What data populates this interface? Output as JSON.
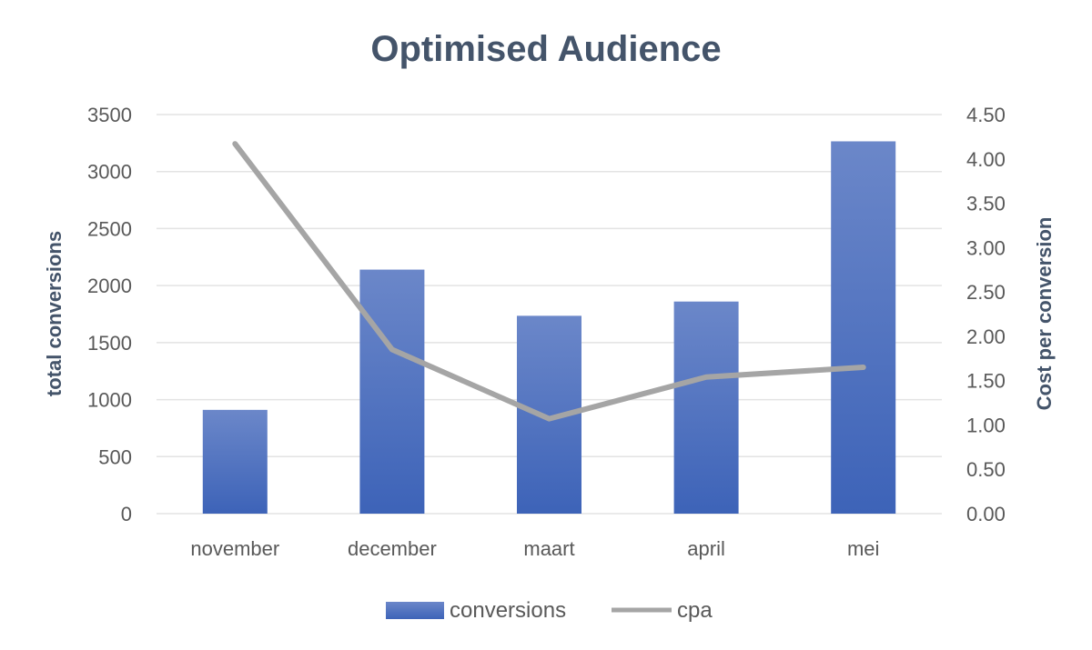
{
  "chart_data": {
    "type": "bar",
    "title": "Optimised Audience",
    "categories": [
      "november",
      "december",
      "maart",
      "april",
      "mei"
    ],
    "series": [
      {
        "name": "conversions",
        "type": "bar",
        "axis": "left",
        "values": [
          910,
          2140,
          1735,
          1860,
          3265
        ]
      },
      {
        "name": "cpa",
        "type": "line",
        "axis": "right",
        "values": [
          4.17,
          1.85,
          1.07,
          1.54,
          1.65
        ]
      }
    ],
    "ylabel": "total conversions",
    "ylim": [
      0,
      3500
    ],
    "yticks": [
      "0",
      "500",
      "1000",
      "1500",
      "2000",
      "2500",
      "3000",
      "3500"
    ],
    "y2label": "Cost per conversion",
    "y2lim": [
      0,
      4.5
    ],
    "y2ticks": [
      "0.00",
      "0.50",
      "1.00",
      "1.50",
      "2.00",
      "2.50",
      "3.00",
      "3.50",
      "4.00",
      "4.50"
    ],
    "grid": true,
    "legend_position": "bottom",
    "colors": {
      "bar_top": "#6b87c9",
      "bar_bottom": "#3d63b8",
      "line": "#a5a5a5",
      "grid": "#e3e3e3"
    }
  }
}
